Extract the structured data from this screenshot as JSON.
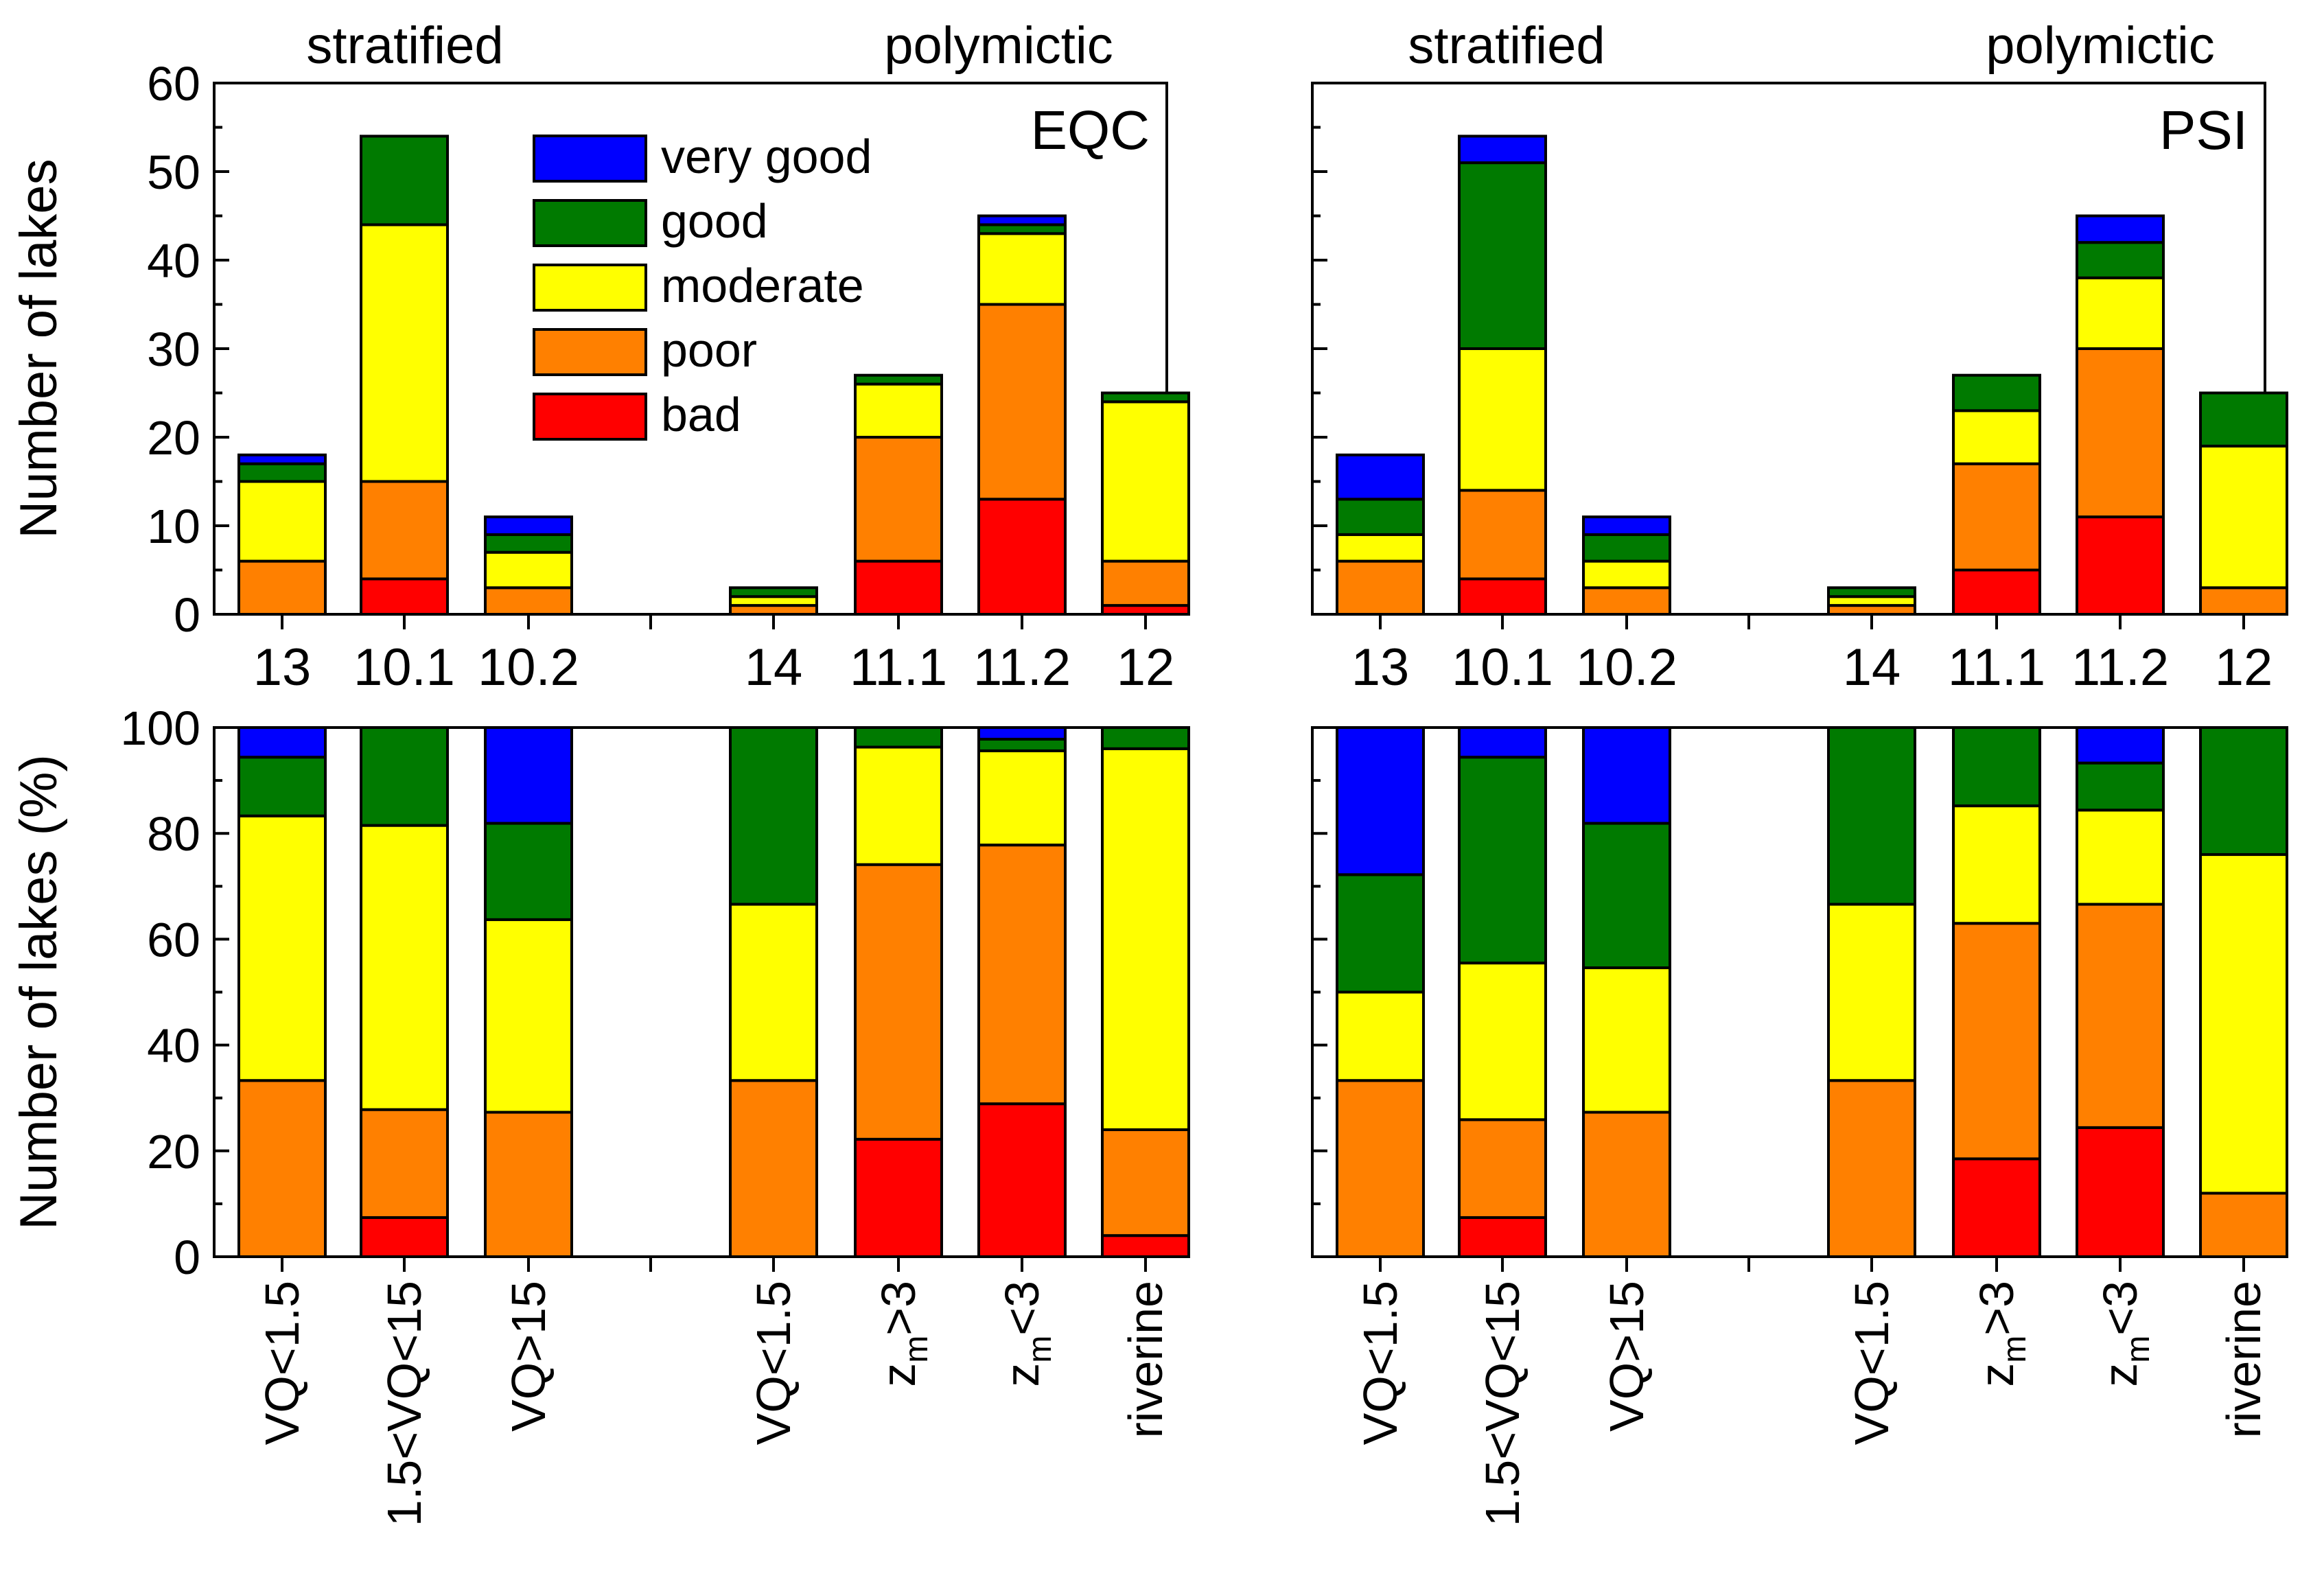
{
  "colors": {
    "very_good": "#0000FF",
    "good": "#007A00",
    "moderate": "#FFFF00",
    "poor": "#FF8000",
    "bad": "#FF0000"
  },
  "legend": [
    {
      "key": "very_good",
      "label": "very good"
    },
    {
      "key": "good",
      "label": "good"
    },
    {
      "key": "moderate",
      "label": "moderate"
    },
    {
      "key": "poor",
      "label": "poor"
    },
    {
      "key": "bad",
      "label": "bad"
    }
  ],
  "group_labels": {
    "stratified": "stratified",
    "polymictic": "polymictic"
  },
  "top_categories": [
    "13",
    "10.1",
    "10.2",
    "14",
    "11.1",
    "11.2",
    "12"
  ],
  "bottom_categories": [
    {
      "main": "VQ<1.5"
    },
    {
      "main": "1.5<VQ<15"
    },
    {
      "main": "VQ>15"
    },
    {
      "main": "VQ<1.5"
    },
    {
      "z": "z",
      "sub": "m",
      "rest": ">3"
    },
    {
      "z": "z",
      "sub": "m",
      "rest": "<3"
    },
    {
      "main": "riverine"
    }
  ],
  "chart_data": [
    {
      "id": "top-left",
      "type": "bar",
      "stacked": true,
      "panel_label": "EQC",
      "ylabel": "Number of lakes",
      "ylim": [
        0,
        60
      ],
      "yticks": [
        "0",
        "10",
        "20",
        "30",
        "40",
        "50",
        "60"
      ],
      "categories": [
        "13",
        "10.1",
        "10.2",
        "14",
        "11.1",
        "11.2",
        "12"
      ],
      "series": [
        {
          "name": "bad",
          "values": [
            0,
            4,
            0,
            0,
            6,
            13,
            1
          ]
        },
        {
          "name": "poor",
          "values": [
            6,
            11,
            3,
            1,
            14,
            22,
            5
          ]
        },
        {
          "name": "moderate",
          "values": [
            9,
            29,
            4,
            1,
            6,
            8,
            18
          ]
        },
        {
          "name": "good",
          "values": [
            2,
            10,
            2,
            1,
            1,
            1,
            1
          ]
        },
        {
          "name": "very good",
          "values": [
            1,
            0,
            2,
            0,
            0,
            1,
            0
          ]
        }
      ]
    },
    {
      "id": "top-right",
      "type": "bar",
      "stacked": true,
      "panel_label": "PSI",
      "ylabel": "",
      "ylim": [
        0,
        60
      ],
      "categories": [
        "13",
        "10.1",
        "10.2",
        "14",
        "11.1",
        "11.2",
        "12"
      ],
      "series": [
        {
          "name": "bad",
          "values": [
            0,
            4,
            0,
            0,
            5,
            11,
            0
          ]
        },
        {
          "name": "poor",
          "values": [
            6,
            10,
            3,
            1,
            12,
            19,
            3
          ]
        },
        {
          "name": "moderate",
          "values": [
            3,
            16,
            3,
            1,
            6,
            8,
            16
          ]
        },
        {
          "name": "good",
          "values": [
            4,
            21,
            3,
            1,
            4,
            4,
            6
          ]
        },
        {
          "name": "very good",
          "values": [
            5,
            3,
            2,
            0,
            0,
            3,
            0
          ]
        }
      ]
    },
    {
      "id": "bottom-left",
      "type": "bar",
      "stacked": true,
      "ylabel": "Number of lakes (%)",
      "ylim": [
        0,
        100
      ],
      "yticks": [
        "0",
        "20",
        "40",
        "60",
        "80",
        "100"
      ],
      "categories": [
        "VQ<1.5",
        "1.5<VQ<15",
        "VQ>15",
        "VQ<1.5",
        "zm>3",
        "zm<3",
        "riverine"
      ],
      "series": [
        {
          "name": "bad",
          "values": [
            0,
            7.4,
            0,
            0,
            22.2,
            28.9,
            4
          ]
        },
        {
          "name": "poor",
          "values": [
            33.3,
            20.4,
            27.3,
            33.3,
            51.9,
            48.9,
            20
          ]
        },
        {
          "name": "moderate",
          "values": [
            50,
            53.7,
            36.4,
            33.3,
            22.2,
            17.8,
            72
          ]
        },
        {
          "name": "good",
          "values": [
            11.1,
            18.5,
            18.2,
            33.4,
            3.7,
            2.2,
            4
          ]
        },
        {
          "name": "very good",
          "values": [
            5.6,
            0,
            18.1,
            0,
            0,
            2.2,
            0
          ]
        }
      ]
    },
    {
      "id": "bottom-right",
      "type": "bar",
      "stacked": true,
      "ylabel": "",
      "ylim": [
        0,
        100
      ],
      "categories": [
        "VQ<1.5",
        "1.5<VQ<15",
        "VQ>15",
        "VQ<1.5",
        "zm>3",
        "zm<3",
        "riverine"
      ],
      "series": [
        {
          "name": "bad",
          "values": [
            0,
            7.4,
            0,
            0,
            18.5,
            24.4,
            0
          ]
        },
        {
          "name": "poor",
          "values": [
            33.3,
            18.5,
            27.3,
            33.3,
            44.5,
            42.2,
            12
          ]
        },
        {
          "name": "moderate",
          "values": [
            16.7,
            29.6,
            27.3,
            33.3,
            22.2,
            17.8,
            64
          ]
        },
        {
          "name": "good",
          "values": [
            22.2,
            38.9,
            27.3,
            33.4,
            14.8,
            8.9,
            24
          ]
        },
        {
          "name": "very good",
          "values": [
            27.8,
            5.6,
            18.1,
            0,
            0,
            6.7,
            0
          ]
        }
      ]
    }
  ]
}
